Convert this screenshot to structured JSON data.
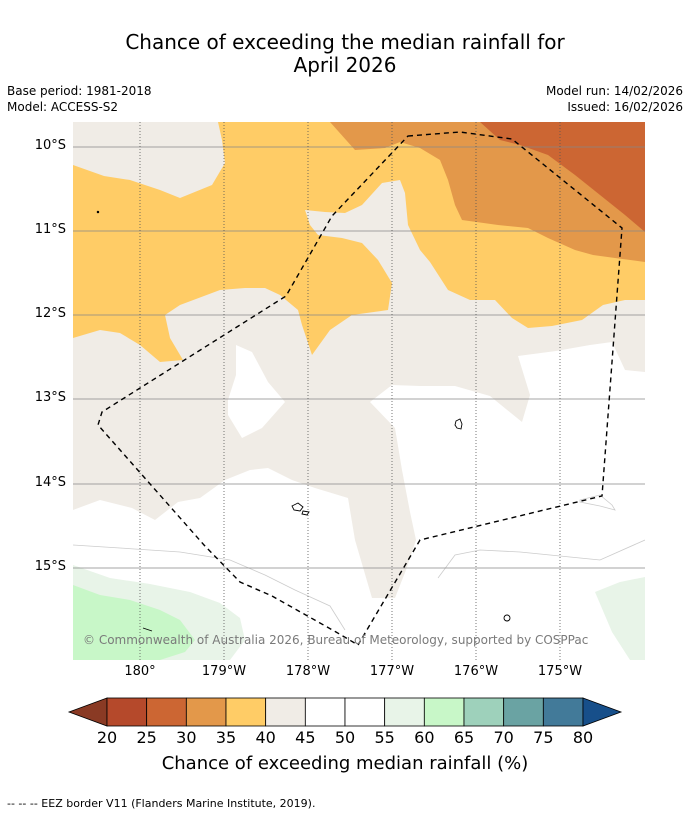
{
  "title_line1": "Chance of exceeding the median rainfall for",
  "title_line2": "April 2026",
  "meta": {
    "base_period": "Base period: 1981-2018",
    "model": "Model: ACCESS-S2",
    "model_run": "Model run: 14/02/2026",
    "issued": "Issued: 16/02/2026"
  },
  "map": {
    "lat_labels": [
      "10°S",
      "11°S",
      "12°S",
      "13°S",
      "14°S",
      "15°S"
    ],
    "lon_labels": [
      "180°",
      "179°W",
      "178°W",
      "177°W",
      "176°W",
      "175°W"
    ],
    "copyright": "© Commonwealth of Australia 2026, Bureau of Meteorology, supported by COSPPac",
    "border_style": "dashed"
  },
  "colorbar": {
    "ticks": [
      "20",
      "25",
      "30",
      "35",
      "40",
      "45",
      "50",
      "55",
      "60",
      "65",
      "70",
      "75",
      "80"
    ],
    "colors": [
      "#b5492b",
      "#cc6633",
      "#e3984a",
      "#ffcc66",
      "#f0ece6",
      "#ffffff",
      "#ffffff",
      "#e8f4e8",
      "#c8f7c8",
      "#9ed1bb",
      "#6aa3a3",
      "#427a99"
    ],
    "under_color": "#8a3a24",
    "over_color": "#174f8a",
    "label": "Chance of exceeding median rainfall (%)"
  },
  "footnote": "--  --  -- EEZ border V11 (Flanders Marine Institute, 2019)."
}
